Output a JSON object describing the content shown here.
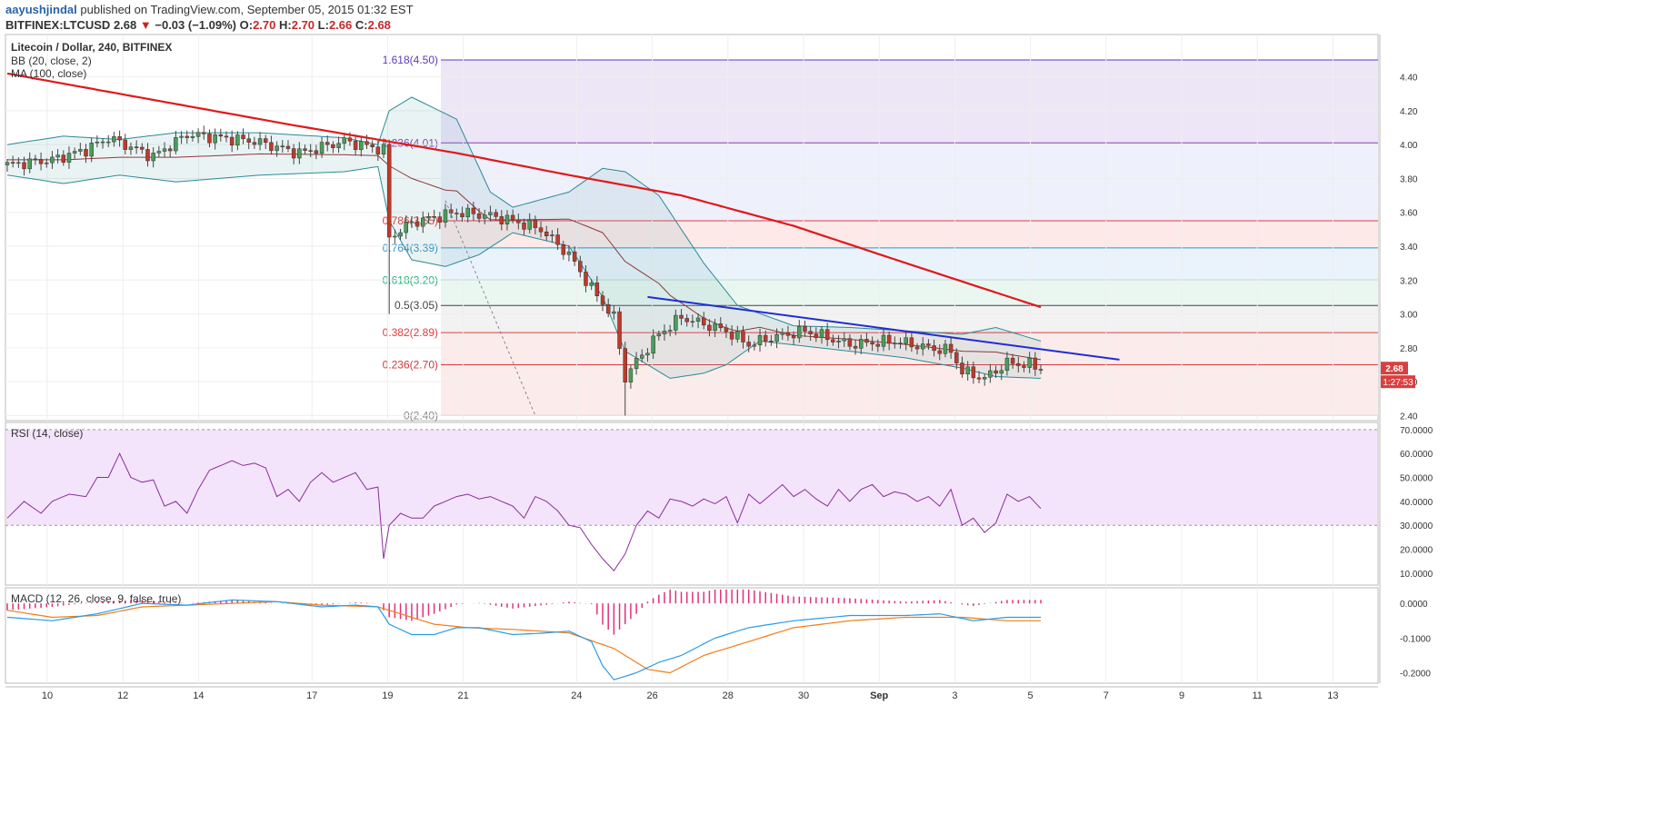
{
  "header": {
    "author": "aayushjindal",
    "published_text": "published on TradingView.com, September 05, 2015 01:32 EST",
    "symbol": "BITFINEX:LTCUSD",
    "last": "2.68",
    "change_arrow": "▼",
    "change": "−0.03 (−1.09%)",
    "o_label": "O:",
    "o_value": "2.70",
    "h_label": "H:",
    "h_value": "2.70",
    "l_label": "L:",
    "l_value": "2.66",
    "c_label": "C:",
    "c_value": "2.68"
  },
  "legend": {
    "title": "Litecoin / Dollar, 240, BITFINEX",
    "bb": "BB (20, close, 2)",
    "ma": "MA (100, close)",
    "rsi": "RSI (14, close)",
    "macd": "MACD (12, 26, close, 9, false, true)"
  },
  "price_badge": {
    "price": "2.68",
    "countdown": "1:27:53"
  },
  "colors": {
    "up": "#4a9d5b",
    "down": "#c0392b",
    "ma": "#e0181b",
    "bb": "#2a8a96",
    "bb_basis": "#8b3a3a",
    "trendline": "#1f2dd6",
    "rsi": "#8a2d9a",
    "macd": "#2a9be8",
    "signal": "#f07d1a",
    "hist": "#e0317b"
  },
  "chart_data": [
    {
      "type": "candlestick",
      "name": "price",
      "x_ticks": [
        "10",
        "12",
        "14",
        "17",
        "19",
        "21",
        "24",
        "26",
        "28",
        "30",
        "Sep",
        "3",
        "5",
        "7",
        "9",
        "11",
        "13"
      ],
      "y_ticks": [
        "4.40",
        "4.20",
        "4.00",
        "3.80",
        "3.60",
        "3.40",
        "3.20",
        "3.00",
        "2.80",
        "2.60",
        "2.40"
      ],
      "ylim": [
        2.37,
        4.65
      ],
      "fib_levels": [
        {
          "label": "1.618(4.50)",
          "value": 4.5
        },
        {
          "label": "1.236(4.01)",
          "value": 4.01
        },
        {
          "label": "0.786(3.55)",
          "value": 3.55
        },
        {
          "label": "0.764(3.39)",
          "value": 3.39
        },
        {
          "label": "0.618(3.20)",
          "value": 3.2
        },
        {
          "label": "0.5(3.05)",
          "value": 3.05
        },
        {
          "label": "0.382(2.89)",
          "value": 2.89
        },
        {
          "label": "0.236(2.70)",
          "value": 2.7
        },
        {
          "label": "0(2.40)",
          "value": 2.4
        }
      ],
      "close_anchors": [
        [
          0,
          3.88
        ],
        [
          8,
          3.91
        ],
        [
          14,
          3.97
        ],
        [
          18,
          4.04
        ],
        [
          26,
          3.93
        ],
        [
          32,
          4.06
        ],
        [
          44,
          4.02
        ],
        [
          52,
          3.95
        ],
        [
          60,
          4.02
        ],
        [
          67,
          3.97
        ],
        [
          68,
          3.45
        ],
        [
          72,
          3.54
        ],
        [
          80,
          3.6
        ],
        [
          86,
          3.58
        ],
        [
          90,
          3.55
        ],
        [
          95,
          3.5
        ],
        [
          100,
          3.35
        ],
        [
          104,
          3.15
        ],
        [
          108,
          2.98
        ],
        [
          110,
          2.62
        ],
        [
          112,
          2.72
        ],
        [
          116,
          2.88
        ],
        [
          120,
          2.98
        ],
        [
          128,
          2.9
        ],
        [
          132,
          2.82
        ],
        [
          136,
          2.86
        ],
        [
          142,
          2.9
        ],
        [
          150,
          2.82
        ],
        [
          158,
          2.84
        ],
        [
          164,
          2.8
        ],
        [
          168,
          2.78
        ],
        [
          170,
          2.66
        ],
        [
          174,
          2.62
        ],
        [
          178,
          2.71
        ],
        [
          182,
          2.7
        ],
        [
          184,
          2.68
        ]
      ],
      "ma100_anchors": [
        [
          0,
          4.42
        ],
        [
          20,
          4.3
        ],
        [
          50,
          4.12
        ],
        [
          80,
          3.95
        ],
        [
          100,
          3.82
        ],
        [
          120,
          3.7
        ],
        [
          140,
          3.52
        ],
        [
          160,
          3.3
        ],
        [
          184,
          3.04
        ]
      ],
      "bb_upper_anchors": [
        [
          0,
          4.0
        ],
        [
          10,
          4.05
        ],
        [
          20,
          4.03
        ],
        [
          30,
          4.07
        ],
        [
          45,
          4.07
        ],
        [
          60,
          4.04
        ],
        [
          66,
          4.0
        ],
        [
          68,
          4.2
        ],
        [
          72,
          4.28
        ],
        [
          80,
          4.15
        ],
        [
          86,
          3.72
        ],
        [
          90,
          3.63
        ],
        [
          100,
          3.72
        ],
        [
          106,
          3.86
        ],
        [
          110,
          3.84
        ],
        [
          116,
          3.7
        ],
        [
          124,
          3.3
        ],
        [
          130,
          3.05
        ],
        [
          140,
          2.93
        ],
        [
          150,
          2.92
        ],
        [
          160,
          2.9
        ],
        [
          170,
          2.88
        ],
        [
          176,
          2.92
        ],
        [
          184,
          2.84
        ]
      ],
      "bb_lower_anchors": [
        [
          0,
          3.82
        ],
        [
          10,
          3.77
        ],
        [
          20,
          3.82
        ],
        [
          30,
          3.78
        ],
        [
          45,
          3.82
        ],
        [
          60,
          3.84
        ],
        [
          66,
          3.87
        ],
        [
          68,
          3.55
        ],
        [
          72,
          3.32
        ],
        [
          78,
          3.28
        ],
        [
          84,
          3.35
        ],
        [
          90,
          3.48
        ],
        [
          100,
          3.4
        ],
        [
          106,
          3.1
        ],
        [
          110,
          2.78
        ],
        [
          118,
          2.62
        ],
        [
          124,
          2.65
        ],
        [
          128,
          2.7
        ],
        [
          134,
          2.84
        ],
        [
          150,
          2.78
        ],
        [
          160,
          2.74
        ],
        [
          170,
          2.68
        ],
        [
          176,
          2.63
        ],
        [
          184,
          2.62
        ]
      ],
      "trendline": [
        [
          114,
          3.1
        ],
        [
          198,
          2.73
        ]
      ],
      "dashed_line": [
        [
          78,
          3.67
        ],
        [
          94,
          2.4
        ]
      ]
    },
    {
      "type": "line",
      "name": "rsi",
      "y_ticks": [
        "70.0000",
        "60.0000",
        "50.0000",
        "40.0000",
        "30.0000",
        "20.0000",
        "10.0000"
      ],
      "ylim": [
        5,
        73
      ],
      "band": [
        30,
        70
      ],
      "anchors": [
        [
          0,
          33
        ],
        [
          3,
          40
        ],
        [
          6,
          35
        ],
        [
          8,
          40
        ],
        [
          11,
          43
        ],
        [
          14,
          42
        ],
        [
          16,
          50
        ],
        [
          18,
          50
        ],
        [
          20,
          60
        ],
        [
          22,
          50
        ],
        [
          24,
          48
        ],
        [
          26,
          49
        ],
        [
          28,
          38
        ],
        [
          30,
          40
        ],
        [
          32,
          35
        ],
        [
          34,
          45
        ],
        [
          36,
          53
        ],
        [
          38,
          55
        ],
        [
          40,
          57
        ],
        [
          42,
          55
        ],
        [
          44,
          56
        ],
        [
          46,
          54
        ],
        [
          48,
          42
        ],
        [
          50,
          45
        ],
        [
          52,
          40
        ],
        [
          54,
          48
        ],
        [
          56,
          52
        ],
        [
          58,
          48
        ],
        [
          60,
          50
        ],
        [
          62,
          52
        ],
        [
          64,
          45
        ],
        [
          66,
          46
        ],
        [
          67,
          16
        ],
        [
          68,
          30
        ],
        [
          70,
          35
        ],
        [
          72,
          33
        ],
        [
          74,
          33
        ],
        [
          76,
          38
        ],
        [
          78,
          40
        ],
        [
          80,
          42
        ],
        [
          82,
          43
        ],
        [
          84,
          41
        ],
        [
          86,
          42
        ],
        [
          88,
          40
        ],
        [
          90,
          38
        ],
        [
          92,
          33
        ],
        [
          94,
          42
        ],
        [
          96,
          40
        ],
        [
          98,
          36
        ],
        [
          100,
          30
        ],
        [
          102,
          29
        ],
        [
          104,
          22
        ],
        [
          106,
          16
        ],
        [
          108,
          11
        ],
        [
          110,
          18
        ],
        [
          112,
          30
        ],
        [
          114,
          36
        ],
        [
          116,
          33
        ],
        [
          118,
          41
        ],
        [
          120,
          40
        ],
        [
          122,
          38
        ],
        [
          124,
          41
        ],
        [
          126,
          39
        ],
        [
          128,
          42
        ],
        [
          130,
          31
        ],
        [
          132,
          43
        ],
        [
          134,
          39
        ],
        [
          136,
          43
        ],
        [
          138,
          47
        ],
        [
          140,
          42
        ],
        [
          142,
          45
        ],
        [
          144,
          41
        ],
        [
          146,
          38
        ],
        [
          148,
          45
        ],
        [
          150,
          40
        ],
        [
          152,
          45
        ],
        [
          154,
          47
        ],
        [
          156,
          42
        ],
        [
          158,
          44
        ],
        [
          160,
          43
        ],
        [
          162,
          40
        ],
        [
          164,
          42
        ],
        [
          166,
          38
        ],
        [
          168,
          45
        ],
        [
          170,
          30
        ],
        [
          172,
          33
        ],
        [
          174,
          27
        ],
        [
          176,
          31
        ],
        [
          178,
          43
        ],
        [
          180,
          40
        ],
        [
          182,
          42
        ],
        [
          184,
          37
        ]
      ]
    },
    {
      "type": "line",
      "name": "macd",
      "y_ticks": [
        "0.0000",
        "-0.1000",
        "-0.2000"
      ],
      "ylim": [
        -0.23,
        0.045
      ],
      "macd_anchors": [
        [
          0,
          -0.04
        ],
        [
          8,
          -0.05
        ],
        [
          16,
          -0.03
        ],
        [
          24,
          0.0
        ],
        [
          32,
          -0.005
        ],
        [
          40,
          0.01
        ],
        [
          48,
          0.005
        ],
        [
          56,
          -0.01
        ],
        [
          62,
          -0.005
        ],
        [
          66,
          -0.01
        ],
        [
          68,
          -0.06
        ],
        [
          72,
          -0.09
        ],
        [
          76,
          -0.09
        ],
        [
          80,
          -0.07
        ],
        [
          84,
          -0.07
        ],
        [
          90,
          -0.09
        ],
        [
          96,
          -0.085
        ],
        [
          100,
          -0.08
        ],
        [
          104,
          -0.11
        ],
        [
          106,
          -0.18
        ],
        [
          108,
          -0.22
        ],
        [
          112,
          -0.2
        ],
        [
          116,
          -0.17
        ],
        [
          120,
          -0.15
        ],
        [
          126,
          -0.1
        ],
        [
          132,
          -0.07
        ],
        [
          140,
          -0.05
        ],
        [
          150,
          -0.035
        ],
        [
          160,
          -0.035
        ],
        [
          166,
          -0.03
        ],
        [
          172,
          -0.05
        ],
        [
          178,
          -0.04
        ],
        [
          184,
          -0.04
        ]
      ],
      "signal_anchors": [
        [
          0,
          -0.02
        ],
        [
          8,
          -0.04
        ],
        [
          16,
          -0.035
        ],
        [
          24,
          -0.01
        ],
        [
          32,
          -0.005
        ],
        [
          40,
          0.0
        ],
        [
          48,
          0.005
        ],
        [
          56,
          -0.005
        ],
        [
          66,
          -0.01
        ],
        [
          70,
          -0.03
        ],
        [
          76,
          -0.06
        ],
        [
          82,
          -0.07
        ],
        [
          90,
          -0.075
        ],
        [
          100,
          -0.085
        ],
        [
          108,
          -0.13
        ],
        [
          114,
          -0.19
        ],
        [
          118,
          -0.2
        ],
        [
          124,
          -0.15
        ],
        [
          132,
          -0.11
        ],
        [
          140,
          -0.07
        ],
        [
          150,
          -0.05
        ],
        [
          160,
          -0.04
        ],
        [
          170,
          -0.04
        ],
        [
          178,
          -0.05
        ],
        [
          184,
          -0.05
        ]
      ]
    }
  ]
}
